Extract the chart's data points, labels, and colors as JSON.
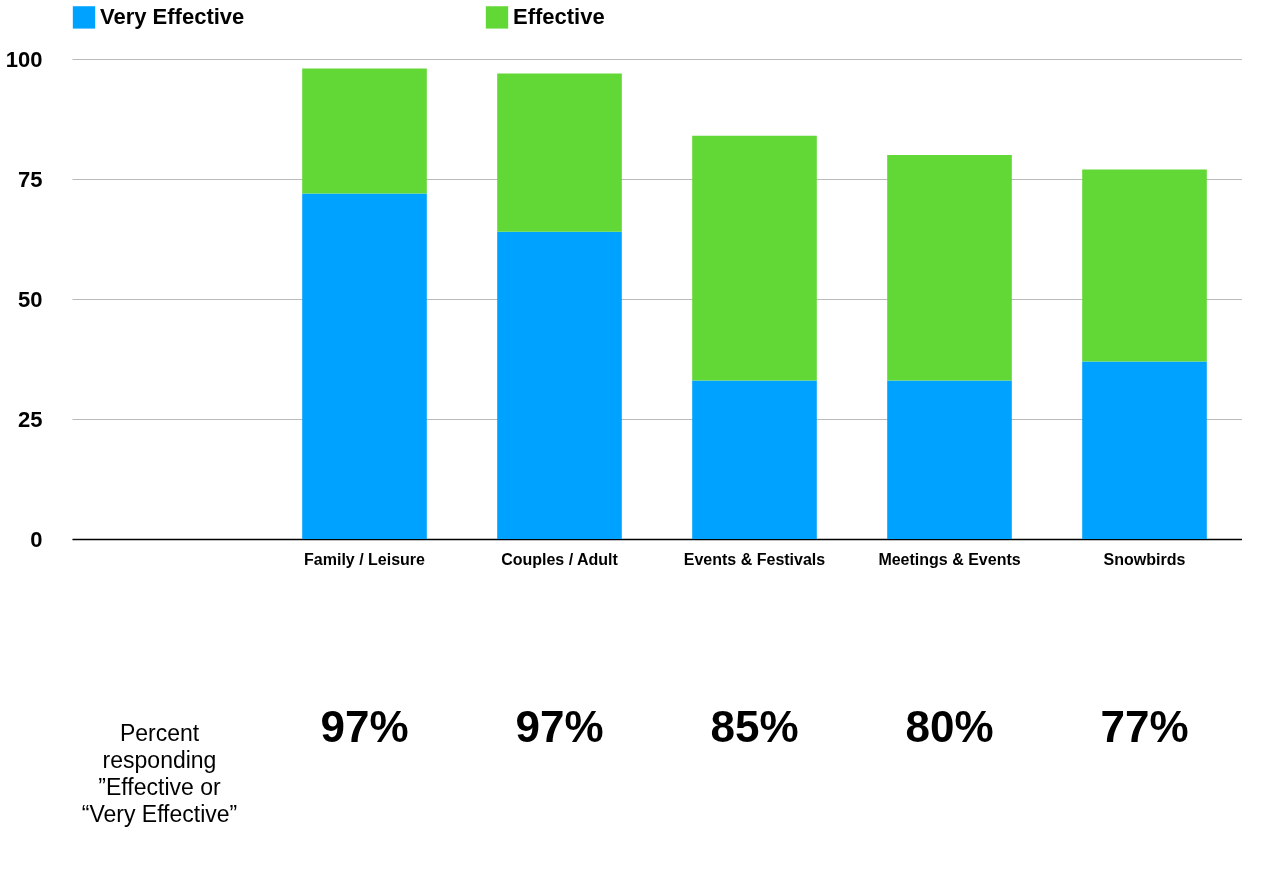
{
  "chart_data": {
    "type": "bar",
    "stacked": true,
    "categories": [
      null,
      "Family / Leisure",
      "Couples / Adult",
      "Events & Festivals",
      "Meetings & Events",
      "Snowbirds"
    ],
    "series": [
      {
        "name": "Very Effective",
        "color": "#00a2ff",
        "values": [
          null,
          72,
          64,
          33,
          33,
          37
        ]
      },
      {
        "name": "Effective",
        "color": "#61d836",
        "values": [
          null,
          26,
          33,
          51,
          47,
          40
        ]
      }
    ],
    "ylim": [
      0,
      100
    ],
    "yticks": [
      0,
      25,
      50,
      75,
      100
    ],
    "grid": "y",
    "legend": "top",
    "annotations": [
      "Percent\nresponding\n”Effective or\n“Very Effective”",
      "97%",
      "97%",
      "85%",
      "80%",
      "77%"
    ]
  }
}
